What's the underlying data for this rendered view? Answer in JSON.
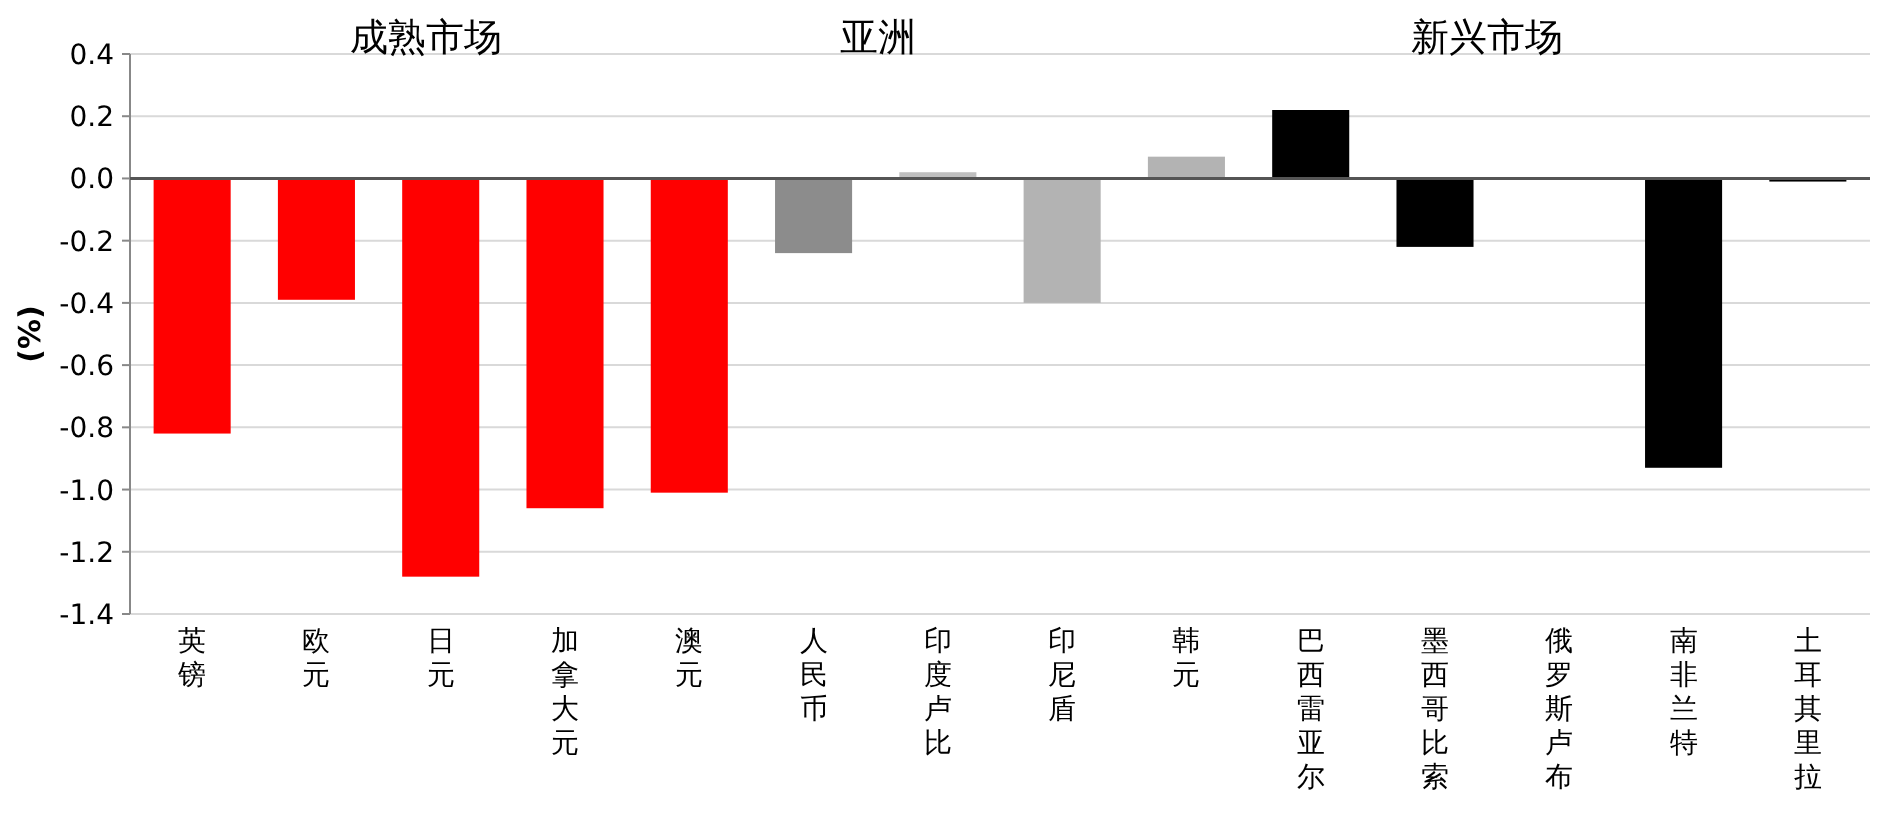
{
  "chart_data": {
    "type": "bar",
    "ylabel": "(%)",
    "categories": [
      "英镑",
      "欧元",
      "日元",
      "加拿大元",
      "澳元",
      "人民币",
      "印度卢比",
      "印尼盾",
      "韩元",
      "巴西雷亚尔",
      "墨西哥比索",
      "俄罗斯卢布",
      "南非兰特",
      "土耳其里拉"
    ],
    "values": [
      -0.82,
      -0.39,
      -1.28,
      -1.06,
      -1.01,
      -0.24,
      0.02,
      -0.4,
      0.07,
      0.22,
      -0.22,
      0,
      -0.93,
      -0.01
    ],
    "colors": [
      "#ff0000",
      "#ff0000",
      "#ff0000",
      "#ff0000",
      "#ff0000",
      "#8c8c8c",
      "#bfbfbf",
      "#b3b3b3",
      "#b3b3b3",
      "#000000",
      "#000000",
      "#000000",
      "#000000",
      "#000000"
    ],
    "ylim": [
      -1.4,
      0.4
    ],
    "yticks": [
      -1.4,
      -1.2,
      {
        "value": -1,
        "label": "-1.0"
      },
      -0.8,
      -0.6,
      -0.4,
      -0.2,
      {
        "value": 0,
        "label": "0.0"
      },
      0.2,
      0.4
    ],
    "grid": "y",
    "annotations": [
      "成熟市场",
      "亚洲",
      "新兴市场"
    ]
  }
}
